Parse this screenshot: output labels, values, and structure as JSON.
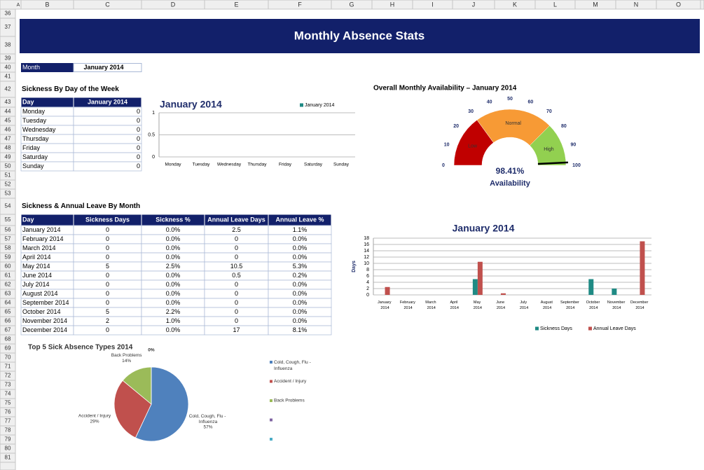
{
  "sheet": {
    "columns": [
      "A",
      "B",
      "C",
      "D",
      "E",
      "F",
      "G",
      "H",
      "I",
      "J",
      "K",
      "L",
      "M",
      "N",
      "O"
    ],
    "rows": [
      36,
      37,
      38,
      39,
      40,
      41,
      42,
      43,
      44,
      45,
      46,
      47,
      48,
      49,
      50,
      51,
      52,
      53,
      54,
      55,
      56,
      57,
      58,
      59,
      60,
      61,
      62,
      63,
      64,
      65,
      66,
      67,
      68,
      69,
      70,
      71,
      72,
      73,
      74,
      75,
      76,
      77,
      78,
      79,
      80,
      81
    ]
  },
  "header": {
    "title": "Monthly Absence Stats",
    "month_label": "Month",
    "month_value": "January 2014"
  },
  "day_table": {
    "title": "Sickness By Day of the Week",
    "columns": [
      "Day",
      "January 2014"
    ],
    "rows": [
      [
        "Monday",
        0
      ],
      [
        "Tuesday",
        0
      ],
      [
        "Wednesday",
        0
      ],
      [
        "Thursday",
        0
      ],
      [
        "Friday",
        0
      ],
      [
        "Saturday",
        0
      ],
      [
        "Sunday",
        0
      ]
    ]
  },
  "month_table": {
    "title": "Sickness & Annual Leave By Month",
    "columns": [
      "Day",
      "Sickness Days",
      "Sickness %",
      "Annual Leave Days",
      "Annual Leave %"
    ],
    "rows": [
      [
        "January 2014",
        0,
        "0.0%",
        2.5,
        "1.1%"
      ],
      [
        "February 2014",
        0,
        "0.0%",
        0,
        "0.0%"
      ],
      [
        "March 2014",
        0,
        "0.0%",
        0,
        "0.0%"
      ],
      [
        "April 2014",
        0,
        "0.0%",
        0,
        "0.0%"
      ],
      [
        "May 2014",
        5,
        "2.5%",
        10.5,
        "5.3%"
      ],
      [
        "June 2014",
        0,
        "0.0%",
        0.5,
        "0.2%"
      ],
      [
        "July 2014",
        0,
        "0.0%",
        0,
        "0.0%"
      ],
      [
        "August 2014",
        0,
        "0.0%",
        0,
        "0.0%"
      ],
      [
        "September 2014",
        0,
        "0.0%",
        0,
        "0.0%"
      ],
      [
        "October 2014",
        5,
        "2.2%",
        0,
        "0.0%"
      ],
      [
        "November 2014",
        2,
        "1.0%",
        0,
        "0.0%"
      ],
      [
        "December 2014",
        0,
        "0.0%",
        17,
        "8.1%"
      ]
    ]
  },
  "chart_data": [
    {
      "type": "bar",
      "title": "January 2014",
      "categories": [
        "Monday",
        "Tuesday",
        "Wednesday",
        "Thursday",
        "Friday",
        "Saturday",
        "Sunday"
      ],
      "series": [
        {
          "name": "January 2014",
          "color": "#1f8a84",
          "values": [
            0,
            0,
            0,
            0,
            0,
            0,
            0
          ]
        }
      ],
      "ylim": [
        0,
        1
      ],
      "yticks": [
        0,
        0.5,
        1
      ],
      "grid": true
    },
    {
      "type": "gauge",
      "title": "Overall Monthly Availability – January 2014",
      "values": [
        98.41
      ],
      "value_labels": [
        "98.41%"
      ],
      "label": "Availability",
      "range": [
        0,
        100
      ],
      "ticks": [
        0,
        10,
        20,
        30,
        40,
        50,
        60,
        70,
        80,
        90,
        100
      ],
      "bands": [
        {
          "name": "Low",
          "from": 0,
          "to": 30,
          "color": "#c00000"
        },
        {
          "name": "Normal",
          "from": 30,
          "to": 75,
          "color": "#f79a35"
        },
        {
          "name": "High",
          "from": 75,
          "to": 100,
          "color": "#92d050"
        }
      ]
    },
    {
      "type": "bar",
      "title": "January 2014",
      "y_label": "Days",
      "categories": [
        "January 2014",
        "February 2014",
        "March 2014",
        "April 2014",
        "May 2014",
        "June 2014",
        "July 2014",
        "August 2014",
        "September 2014",
        "October 2014",
        "November 2014",
        "December 2014"
      ],
      "series": [
        {
          "name": "Sickness Days",
          "color": "#1f8a84",
          "values": [
            0,
            0,
            0,
            0,
            5,
            0,
            0,
            0,
            0,
            5,
            2,
            0
          ]
        },
        {
          "name": "Annual Leave Days",
          "color": "#c0504d",
          "values": [
            2.5,
            0,
            0,
            0,
            10.5,
            0.5,
            0,
            0,
            0,
            0,
            0,
            17
          ]
        }
      ],
      "ylim": [
        0,
        18
      ],
      "yticks": [
        0,
        2,
        4,
        6,
        8,
        10,
        12,
        14,
        16,
        18
      ],
      "grid": true
    },
    {
      "type": "pie",
      "title": "Top 5 Sick Absence Types 2014",
      "categories": [
        "Cold, Cough, Flu - Influenza",
        "Accident / Injury",
        "Back Problems",
        null,
        null
      ],
      "values": [
        57,
        29,
        14,
        0,
        0
      ],
      "value_labels": [
        "57%",
        "29%",
        "14%",
        "0%",
        null
      ],
      "colors": [
        "#4f81bd",
        "#c0504d",
        "#9bbb59",
        "#8064a2",
        "#4bacc6"
      ]
    }
  ]
}
